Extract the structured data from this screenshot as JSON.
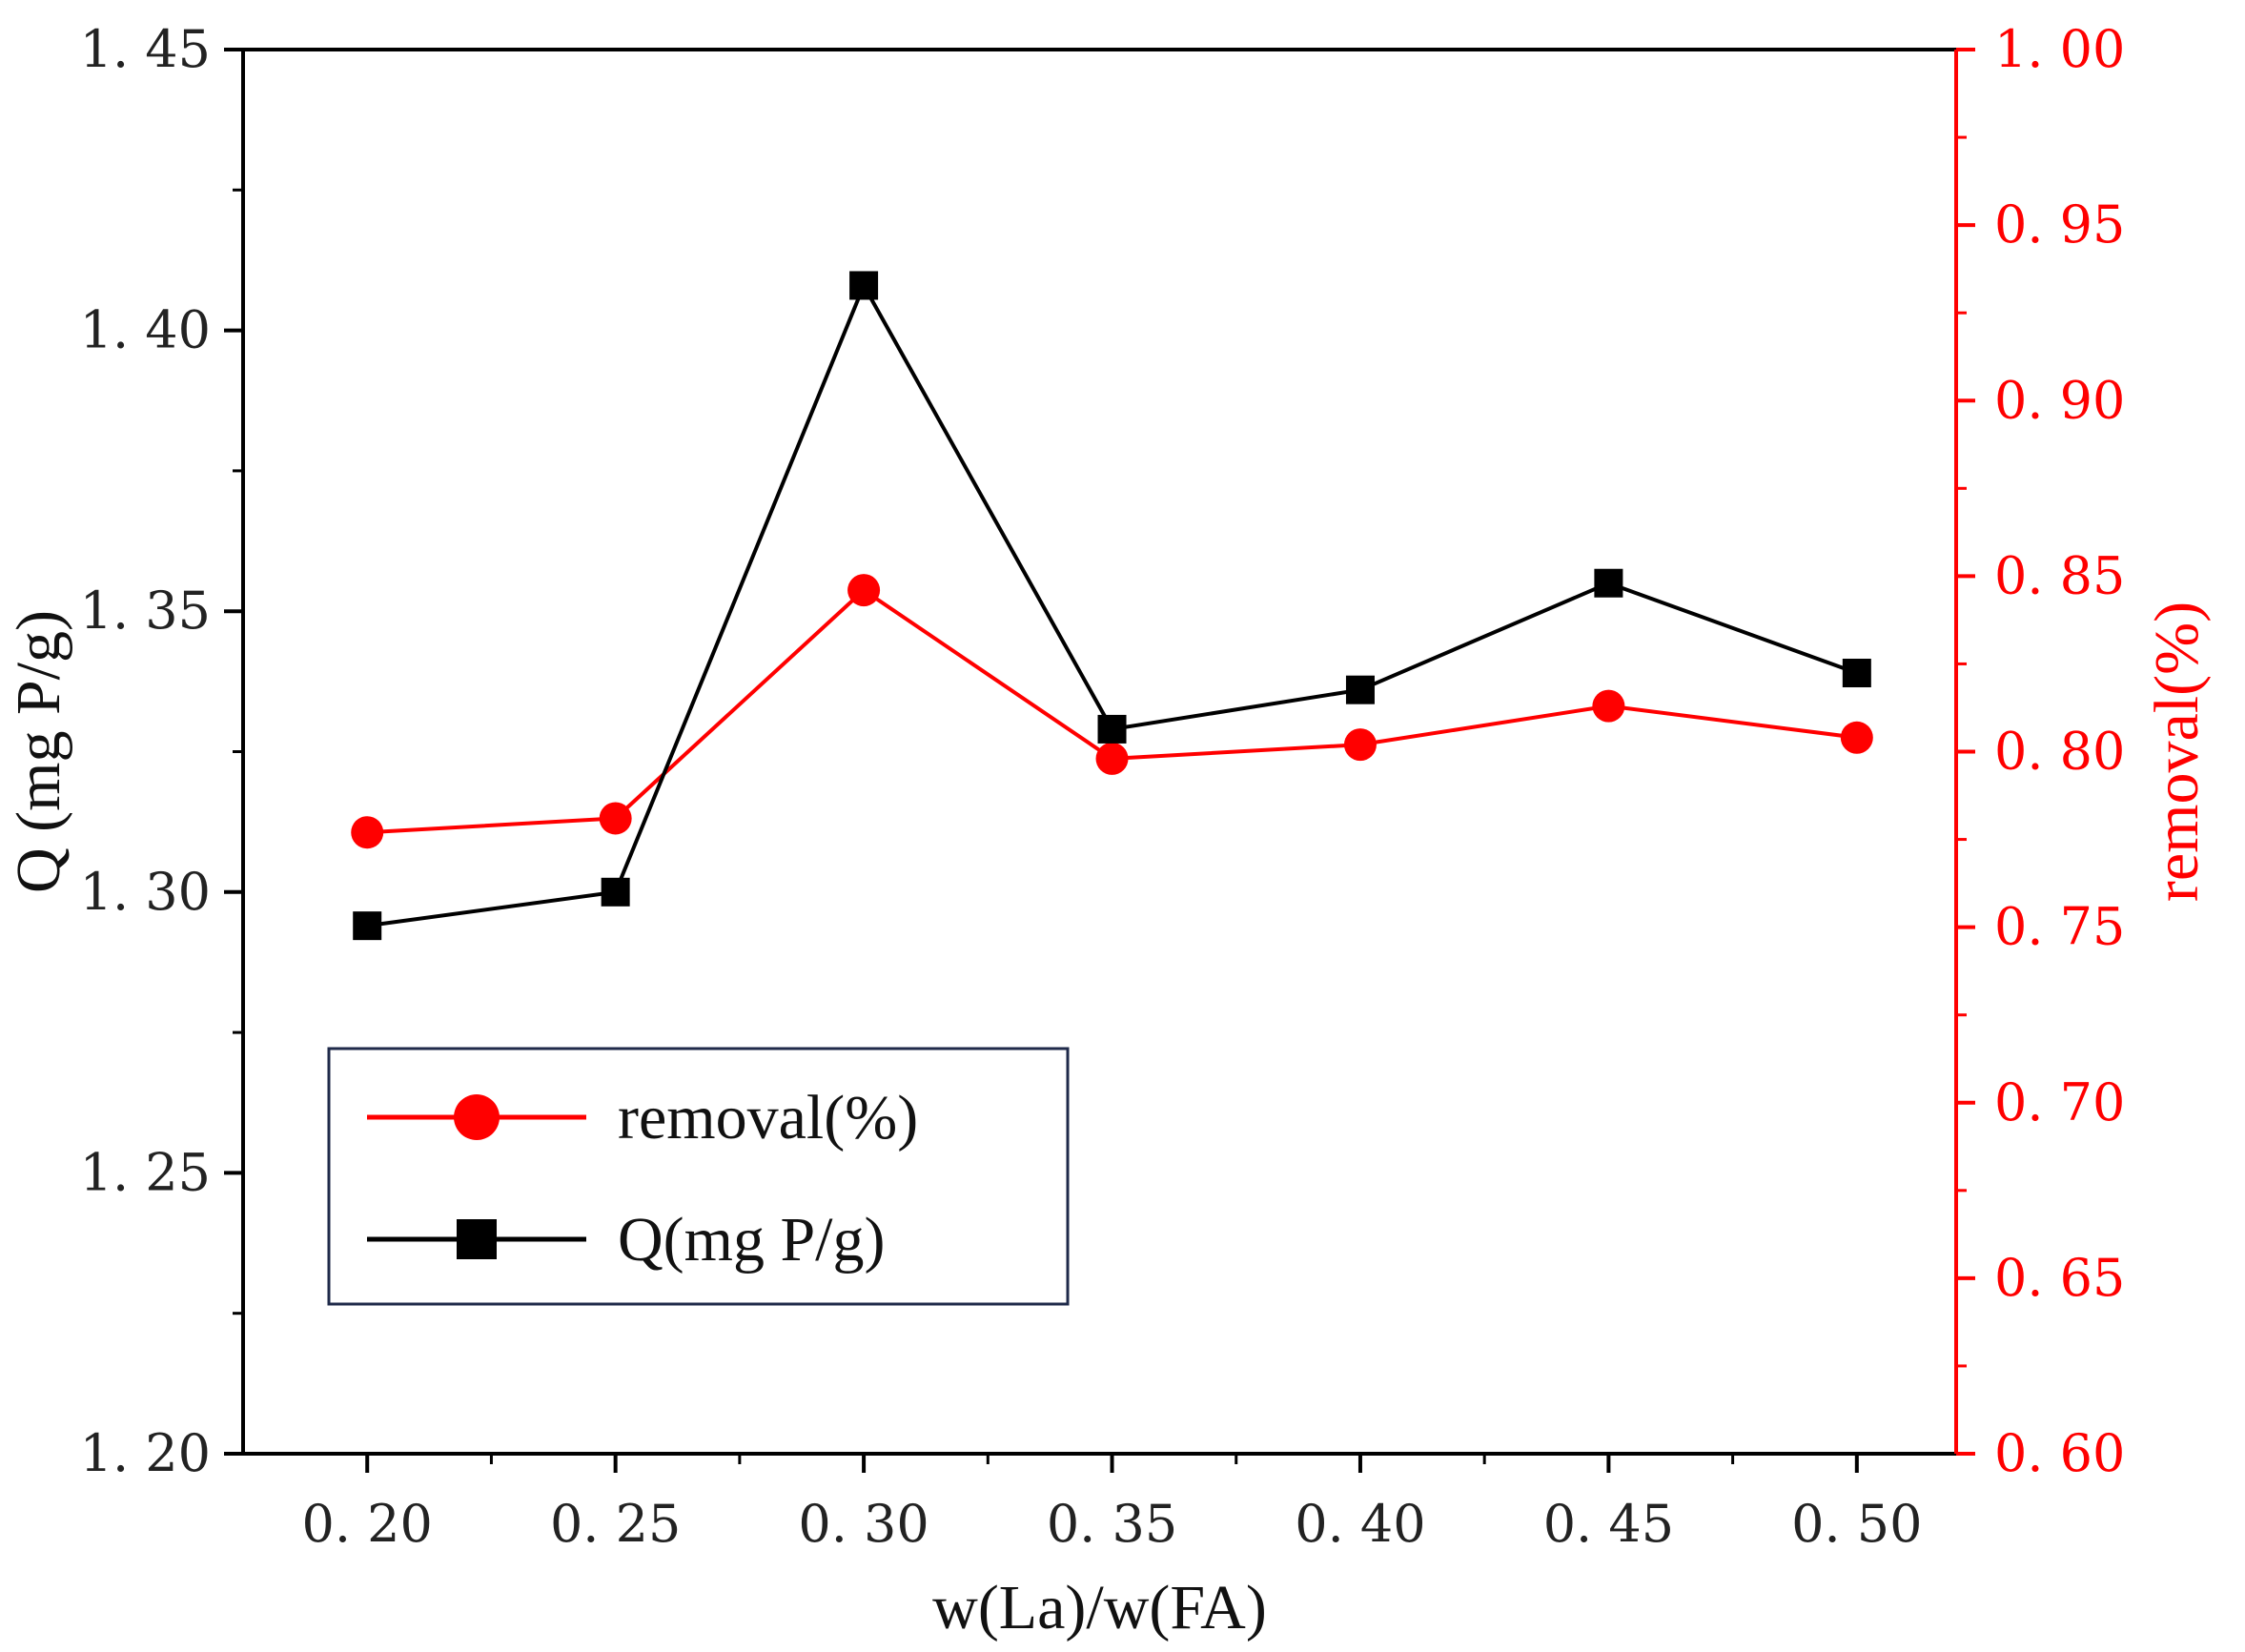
{
  "chart_data": {
    "type": "line",
    "x": [
      0.2,
      0.25,
      0.3,
      0.35,
      0.4,
      0.45,
      0.5
    ],
    "x_tick_labels": [
      "0. 20",
      "0. 25",
      "0. 30",
      "0. 35",
      "0. 40",
      "0. 45",
      "0. 50"
    ],
    "xlabel": "w(La)/w(FA)",
    "xlim": [
      0.175,
      0.52
    ],
    "y_left": {
      "label": "Q (mg P/g)",
      "range": [
        1.2,
        1.45
      ],
      "ticks": [
        1.2,
        1.25,
        1.3,
        1.35,
        1.4,
        1.45
      ],
      "tick_labels": [
        "1. 20",
        "1. 25",
        "1. 30",
        "1. 35",
        "1. 40",
        "1. 45"
      ],
      "color": "#000000"
    },
    "y_right": {
      "label": "removal(%)",
      "range": [
        0.6,
        1.0
      ],
      "ticks": [
        0.6,
        0.65,
        0.7,
        0.75,
        0.8,
        0.85,
        0.9,
        0.95,
        1.0
      ],
      "tick_labels": [
        "0. 60",
        "0. 65",
        "0. 70",
        "0. 75",
        "0. 80",
        "0. 85",
        "0. 90",
        "0. 95",
        "1. 00"
      ],
      "color": "#ff0000"
    },
    "series": [
      {
        "name": "removal(%)",
        "axis": "right",
        "marker": "circle",
        "color": "#ff0000",
        "values": [
          0.777,
          0.781,
          0.846,
          0.798,
          0.802,
          0.813,
          0.804
        ]
      },
      {
        "name": "Q(mg P/g)",
        "axis": "left",
        "marker": "square",
        "color": "#000000",
        "values": [
          1.294,
          1.3,
          1.408,
          1.329,
          1.336,
          1.355,
          1.339
        ]
      }
    ],
    "legend": {
      "placement": "lower-left",
      "entries": [
        "removal(%)",
        "Q(mg P/g)"
      ],
      "border_color": "#1f2a4a"
    },
    "grid": false
  }
}
